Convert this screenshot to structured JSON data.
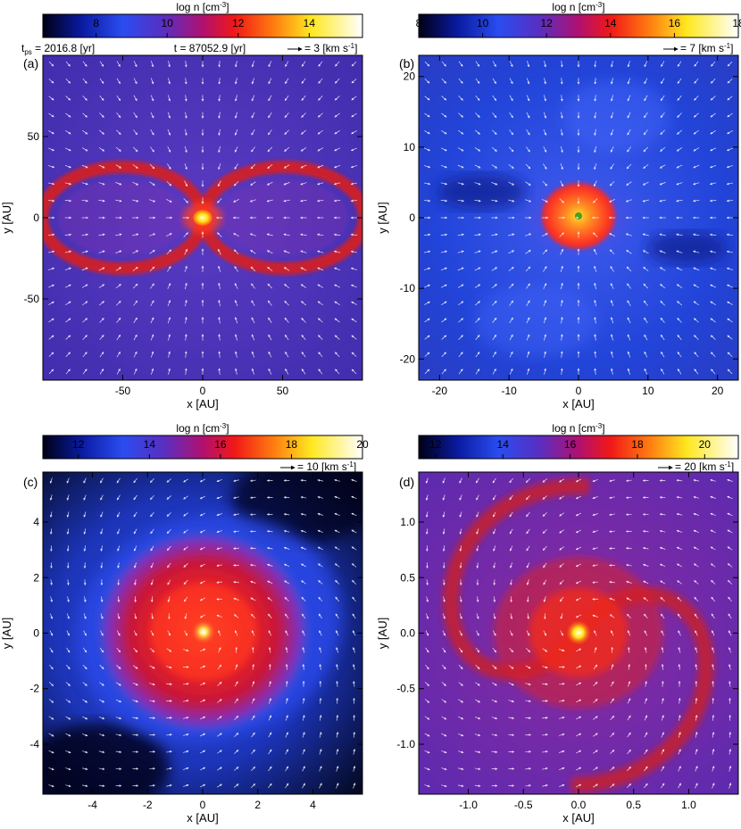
{
  "chart_data": [
    {
      "panel_label": "(a)",
      "type": "heatmap",
      "colorbar": {
        "title": "log n [cm",
        "title_sup": "-3",
        "title_end": "]",
        "ticks": [
          "8",
          "10",
          "12",
          "14"
        ],
        "range": [
          6.5,
          15.5
        ]
      },
      "header": {
        "tps_prefix": "t",
        "tps_sub": "ps",
        "tps_value": " = 2016.8 [yr]",
        "time": "t = 87052.9 [yr]"
      },
      "vector_legend": {
        "text": "= 3 [km s",
        "sup": "-1",
        "end": "]"
      },
      "xlabel": "x [AU]",
      "ylabel": "y [AU]",
      "xticks": [
        "-50",
        "0",
        "50"
      ],
      "xtick_values": [
        -50,
        0,
        50
      ],
      "yticks": [
        "50",
        "0",
        "-50"
      ],
      "ytick_values": [
        50,
        0,
        -50
      ],
      "xlim": [
        -100,
        100
      ],
      "ylim": [
        -100,
        100
      ],
      "background": "#5a32b4",
      "structure": "figure-eight filament",
      "core_color": "#ffd21e"
    },
    {
      "panel_label": "(b)",
      "type": "heatmap",
      "colorbar": {
        "title": "log n [cm",
        "title_sup": "-3",
        "title_end": "]",
        "ticks": [
          "8",
          "10",
          "12",
          "14",
          "16",
          "18"
        ],
        "range": [
          8,
          18
        ]
      },
      "vector_legend": {
        "text": "= 7 [km s",
        "sup": "-1",
        "end": "]"
      },
      "xlabel": "x [AU]",
      "ylabel": "y [AU]",
      "xticks": [
        "-20",
        "-10",
        "0",
        "10",
        "20"
      ],
      "xtick_values": [
        -20,
        -10,
        0,
        10,
        20
      ],
      "yticks": [
        "20",
        "10",
        "0",
        "-10",
        "-20"
      ],
      "ytick_values": [
        20,
        10,
        0,
        -10,
        -20
      ],
      "xlim": [
        -23,
        23
      ],
      "ylim": [
        -23,
        23
      ],
      "background": "#2850dc",
      "structure": "compact central clump",
      "core_color": "#ff5a14"
    },
    {
      "panel_label": "(c)",
      "type": "heatmap",
      "colorbar": {
        "title": "log n [cm",
        "title_sup": "-3",
        "title_end": "]",
        "ticks": [
          "12",
          "14",
          "16",
          "18",
          "20"
        ],
        "range": [
          11,
          20
        ]
      },
      "vector_legend": {
        "text": "= 10 [km s",
        "sup": "-1",
        "end": "]"
      },
      "xlabel": "x [AU]",
      "ylabel": "y [AU]",
      "xticks": [
        "-4",
        "-2",
        "0",
        "2",
        "4"
      ],
      "xtick_values": [
        -4,
        -2,
        0,
        2,
        4
      ],
      "yticks": [
        "4",
        "2",
        "0",
        "-2",
        "-4"
      ],
      "ytick_values": [
        4,
        2,
        0,
        -2,
        -4
      ],
      "xlim": [
        -5.8,
        5.8
      ],
      "ylim": [
        -5.8,
        5.8
      ],
      "background": "#141e78",
      "structure": "disk",
      "core_color": "#e81e1e"
    },
    {
      "panel_label": "(d)",
      "type": "heatmap",
      "colorbar": {
        "title": "log n [cm",
        "title_sup": "-3",
        "title_end": "]",
        "ticks": [
          "12",
          "14",
          "16",
          "18",
          "20"
        ],
        "range": [
          11.5,
          21
        ]
      },
      "vector_legend": {
        "text": "= 20 [km s",
        "sup": "-1",
        "end": "]"
      },
      "xlabel": "x [AU]",
      "ylabel": "y [AU]",
      "xticks": [
        "-1.0",
        "-0.5",
        "0.0",
        "0.5",
        "1.0"
      ],
      "xtick_values": [
        -1,
        -0.5,
        0,
        0.5,
        1
      ],
      "yticks": [
        "1.0",
        "0.5",
        "0.0",
        "-0.5",
        "-1.0"
      ],
      "ytick_values": [
        1,
        0.5,
        0,
        -0.5,
        -1
      ],
      "xlim": [
        -1.45,
        1.45
      ],
      "ylim": [
        -1.45,
        1.45
      ],
      "background": "#6428aa",
      "structure": "spiral arms",
      "core_color": "#ffe600"
    }
  ]
}
